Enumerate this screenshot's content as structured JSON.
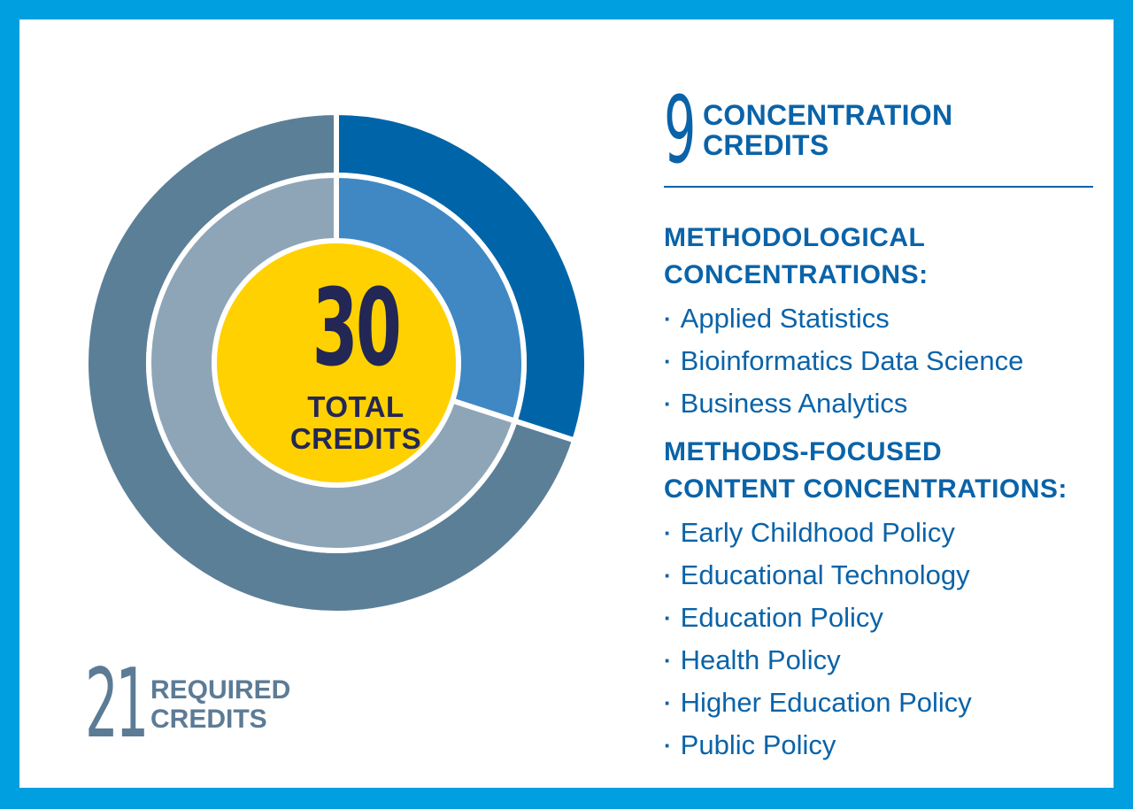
{
  "colors": {
    "border": "#009fdf",
    "outer_concentration": "#0065a8",
    "outer_required": "#5c7f98",
    "inner_concentration": "#3f88c4",
    "inner_required": "#8ea5b8",
    "center": "#ffd100",
    "center_text": "#232755",
    "primary_text": "#0a63a8"
  },
  "center": {
    "number": "30",
    "label_line1": "TOTAL",
    "label_line2": "CREDITS"
  },
  "required": {
    "number": "21",
    "label_line1": "REQUIRED",
    "label_line2": "CREDITS"
  },
  "concentration": {
    "number": "9",
    "label_line1": "CONCENTRATION",
    "label_line2": "CREDITS"
  },
  "methodological": {
    "title_line1": "METHODOLOGICAL",
    "title_line2": "CONCENTRATIONS:",
    "items": [
      "Applied Statistics",
      "Bioinformatics Data Science",
      "Business Analytics"
    ]
  },
  "content": {
    "title_line1": "METHODS-FOCUSED",
    "title_line2": "CONTENT CONCENTRATIONS:",
    "items": [
      "Early Childhood Policy",
      "Educational Technology",
      "Education Policy",
      "Health Policy",
      "Higher Education Policy",
      "Public Policy"
    ]
  },
  "chart_data": {
    "type": "pie",
    "categories": [
      "Concentration Credits",
      "Required Credits"
    ],
    "values": [
      9,
      21
    ],
    "total": 30
  }
}
